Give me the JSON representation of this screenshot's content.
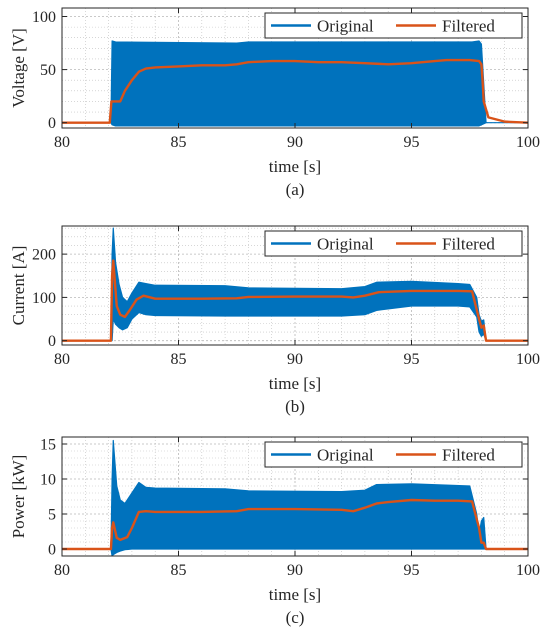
{
  "colors": {
    "original": "#0072BD",
    "filtered": "#D95319",
    "axis": "#262626",
    "grid": "#b8b8b8"
  },
  "chart_data": [
    {
      "type": "line",
      "caption": "(a)",
      "xlabel": "time [s]",
      "ylabel": "Voltage [V]",
      "xlim": [
        80,
        100
      ],
      "ylim": [
        -5,
        108
      ],
      "xticks": [
        80,
        85,
        90,
        95,
        100
      ],
      "yticks": [
        0,
        50,
        100
      ],
      "grid": true,
      "minor_grid": true,
      "legend": "top-right",
      "series": [
        {
          "name": "Original",
          "style": "band",
          "x": [
            80,
            82.1,
            82.15,
            82.3,
            87.5,
            88,
            97.6,
            97.9,
            98.0,
            98.2,
            100
          ],
          "upper": [
            0,
            0,
            77,
            76,
            75,
            76,
            76,
            77,
            74,
            0,
            0
          ],
          "lower": [
            0,
            0,
            -2,
            -3,
            -3,
            -3,
            -3,
            -3,
            -2,
            0,
            0
          ]
        },
        {
          "name": "Filtered",
          "style": "line",
          "x": [
            80,
            82.05,
            82.12,
            82.5,
            82.7,
            83.0,
            83.3,
            83.6,
            84,
            85,
            86,
            87,
            87.5,
            88,
            89,
            90,
            91,
            92,
            93,
            94,
            95,
            96,
            96.5,
            97,
            97.5,
            97.9,
            98.0,
            98.05,
            98.1,
            98.3,
            99,
            100
          ],
          "y": [
            0,
            0,
            20,
            20,
            30,
            40,
            48,
            51,
            52,
            53,
            54,
            54,
            55,
            57,
            58,
            58,
            57,
            57,
            56,
            55,
            56,
            58,
            59,
            59,
            59,
            58,
            55,
            40,
            20,
            5,
            1,
            0
          ]
        }
      ]
    },
    {
      "type": "line",
      "caption": "(b)",
      "xlabel": "time [s]",
      "ylabel": "Current [A]",
      "xlim": [
        80,
        100
      ],
      "ylim": [
        -10,
        265
      ],
      "xticks": [
        80,
        85,
        90,
        95,
        100
      ],
      "yticks": [
        0,
        100,
        200
      ],
      "grid": true,
      "minor_grid": true,
      "legend": "top-right",
      "series": [
        {
          "name": "Original",
          "style": "band",
          "x": [
            80,
            82.1,
            82.15,
            82.2,
            82.3,
            82.45,
            82.6,
            82.8,
            83.0,
            83.3,
            83.6,
            84,
            87,
            88,
            92,
            93,
            93.5,
            95,
            97,
            97.5,
            97.8,
            97.9,
            98.0,
            98.1,
            98.2,
            100
          ],
          "upper": [
            0,
            0,
            200,
            260,
            180,
            130,
            100,
            90,
            110,
            135,
            132,
            128,
            127,
            122,
            120,
            125,
            135,
            137,
            132,
            130,
            100,
            60,
            45,
            48,
            0,
            0
          ],
          "lower": [
            0,
            0,
            0,
            50,
            38,
            30,
            25,
            30,
            50,
            65,
            60,
            58,
            57,
            57,
            57,
            60,
            70,
            80,
            80,
            78,
            55,
            20,
            10,
            15,
            0,
            0
          ]
        },
        {
          "name": "Filtered",
          "style": "line",
          "x": [
            80,
            82.1,
            82.15,
            82.2,
            82.35,
            82.5,
            82.7,
            82.9,
            83.2,
            83.5,
            84,
            86,
            87.5,
            88,
            90,
            92,
            92.5,
            93,
            93.6,
            94,
            95,
            96,
            97,
            97.6,
            97.9,
            98.0,
            98.1,
            98.2,
            100
          ],
          "y": [
            0,
            0,
            150,
            185,
            80,
            60,
            55,
            70,
            95,
            104,
            97,
            97,
            98,
            101,
            102,
            102,
            100,
            104,
            112,
            113,
            115,
            115,
            115,
            114,
            50,
            30,
            35,
            0,
            0
          ]
        }
      ]
    },
    {
      "type": "line",
      "caption": "(c)",
      "xlabel": "time [s]",
      "ylabel": "Power [kW]",
      "xlim": [
        80,
        100
      ],
      "ylim": [
        -1,
        16
      ],
      "xticks": [
        80,
        85,
        90,
        95,
        100
      ],
      "yticks": [
        0,
        5,
        10,
        15
      ],
      "grid": true,
      "minor_grid": true,
      "legend": "top-right",
      "series": [
        {
          "name": "Original",
          "style": "band",
          "x": [
            80,
            82.1,
            82.15,
            82.2,
            82.35,
            82.5,
            82.7,
            83.0,
            83.3,
            83.6,
            84,
            87,
            88,
            92,
            93,
            93.5,
            95,
            97.5,
            97.8,
            97.9,
            98.0,
            98.1,
            98.2,
            100
          ],
          "upper": [
            0,
            0,
            10,
            15.5,
            9,
            7,
            6.5,
            8,
            9.5,
            8.8,
            8.7,
            8.6,
            8.3,
            8.2,
            8.4,
            9.2,
            9.3,
            9.0,
            5,
            2,
            4,
            4.5,
            0,
            0
          ],
          "lower": [
            0,
            0,
            -1,
            -0.8,
            -0.5,
            -0.3,
            -0.1,
            0,
            0,
            0,
            0,
            0,
            0,
            0,
            0,
            0,
            0,
            0,
            0,
            0,
            0,
            0,
            0,
            0
          ]
        },
        {
          "name": "Filtered",
          "style": "line",
          "x": [
            80,
            82.1,
            82.15,
            82.2,
            82.35,
            82.5,
            82.8,
            83.0,
            83.3,
            83.6,
            84,
            86,
            87.5,
            88,
            90,
            92,
            92.5,
            93,
            93.5,
            94,
            95,
            96,
            97,
            97.6,
            97.9,
            98.0,
            98.1,
            98.2,
            100
          ],
          "y": [
            0,
            0,
            3,
            3.8,
            1.6,
            1.3,
            1.7,
            3,
            5.3,
            5.4,
            5.3,
            5.3,
            5.4,
            5.7,
            5.7,
            5.6,
            5.4,
            5.9,
            6.5,
            6.7,
            7.0,
            6.9,
            6.9,
            6.8,
            3,
            0.9,
            0.9,
            0,
            0
          ]
        }
      ]
    }
  ]
}
